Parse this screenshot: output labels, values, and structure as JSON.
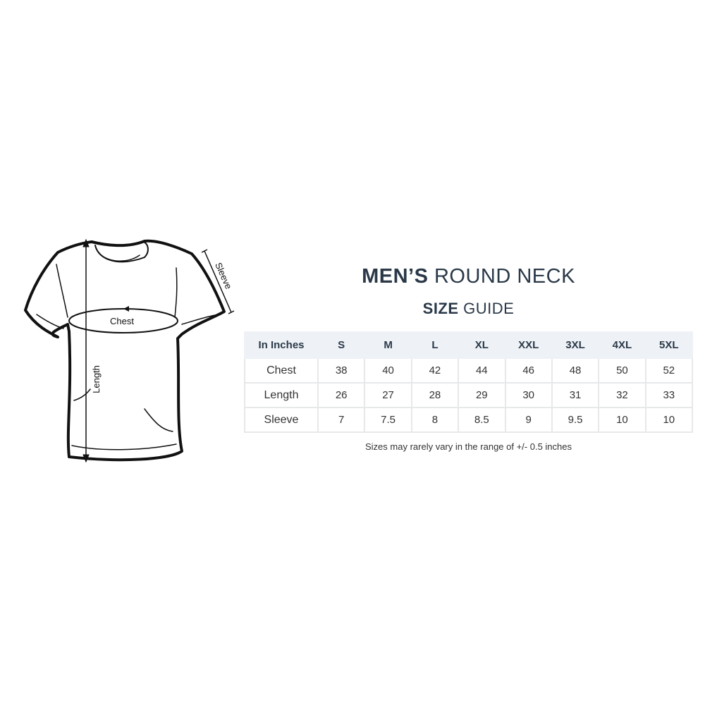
{
  "title": {
    "bold": "MEN’S",
    "light": "ROUND NECK"
  },
  "subtitle": {
    "bold": "SIZE",
    "light": "GUIDE"
  },
  "diagram": {
    "chest_label": "Chest",
    "length_label": "Length",
    "sleeve_label": "Sleeve"
  },
  "table": {
    "header": [
      "In Inches",
      "S",
      "M",
      "L",
      "XL",
      "XXL",
      "3XL",
      "4XL",
      "5XL"
    ],
    "rows": [
      {
        "label": "Chest",
        "values": [
          "38",
          "40",
          "42",
          "44",
          "46",
          "48",
          "50",
          "52"
        ]
      },
      {
        "label": "Length",
        "values": [
          "26",
          "27",
          "28",
          "29",
          "30",
          "31",
          "32",
          "33"
        ]
      },
      {
        "label": "Sleeve",
        "values": [
          "7",
          "7.5",
          "8",
          "8.5",
          "9",
          "9.5",
          "10",
          "10"
        ]
      }
    ]
  },
  "note": "Sizes may rarely vary in the range of +/- 0.5 inches",
  "colors": {
    "title": "#2a3848",
    "header_bg": "#eef1f5",
    "border": "#e6e8ea"
  }
}
